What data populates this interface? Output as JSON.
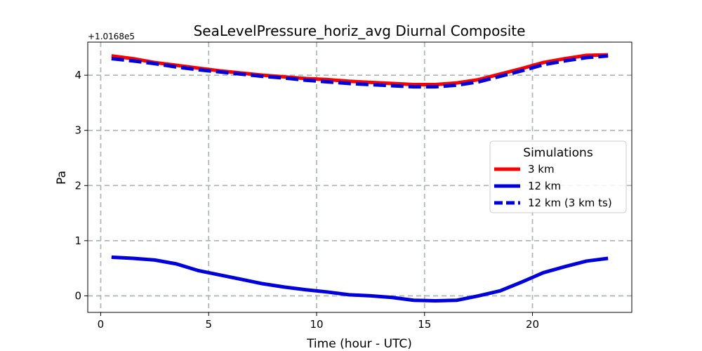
{
  "chart_data": {
    "type": "line",
    "title": "SeaLevelPressure_horiz_avg Diurnal Composite",
    "xlabel": "Time (hour - UTC)",
    "ylabel": "Pa",
    "y_offset_label": "+1.0168e5",
    "xlim": [
      -0.6,
      24.6
    ],
    "ylim": [
      -0.3,
      4.6
    ],
    "x_ticks": [
      0,
      5,
      10,
      15,
      20
    ],
    "y_ticks": [
      0,
      1,
      2,
      3,
      4
    ],
    "grid": true,
    "legend_title": "Simulations",
    "legend_position": "center-right",
    "x": [
      0.5,
      1.5,
      2.5,
      3.5,
      4.5,
      5.5,
      6.5,
      7.5,
      8.5,
      9.5,
      10.5,
      11.5,
      12.5,
      13.5,
      14.5,
      15.5,
      16.5,
      17.5,
      18.5,
      19.5,
      20.5,
      21.5,
      22.5,
      23.5
    ],
    "series": [
      {
        "name": "3 km",
        "color": "#ff0000",
        "dash": "solid",
        "values": [
          4.35,
          4.3,
          4.23,
          4.18,
          4.13,
          4.08,
          4.04,
          4.0,
          3.97,
          3.94,
          3.92,
          3.89,
          3.87,
          3.85,
          3.83,
          3.83,
          3.86,
          3.92,
          4.02,
          4.12,
          4.23,
          4.3,
          4.36,
          4.37
        ]
      },
      {
        "name": "12 km",
        "color": "#0000dd",
        "dash": "solid",
        "values": [
          0.7,
          0.68,
          0.65,
          0.58,
          0.46,
          0.38,
          0.3,
          0.22,
          0.16,
          0.11,
          0.07,
          0.02,
          0.0,
          -0.03,
          -0.08,
          -0.09,
          -0.08,
          0.0,
          0.09,
          0.25,
          0.42,
          0.53,
          0.63,
          0.68
        ]
      },
      {
        "name": "12 km (3 km ts)",
        "color": "#0000dd",
        "dash": "dashed",
        "values": [
          4.3,
          4.26,
          4.21,
          4.15,
          4.1,
          4.06,
          4.02,
          3.98,
          3.95,
          3.91,
          3.88,
          3.85,
          3.83,
          3.81,
          3.79,
          3.79,
          3.82,
          3.88,
          3.98,
          4.08,
          4.19,
          4.26,
          4.32,
          4.35
        ]
      }
    ]
  }
}
